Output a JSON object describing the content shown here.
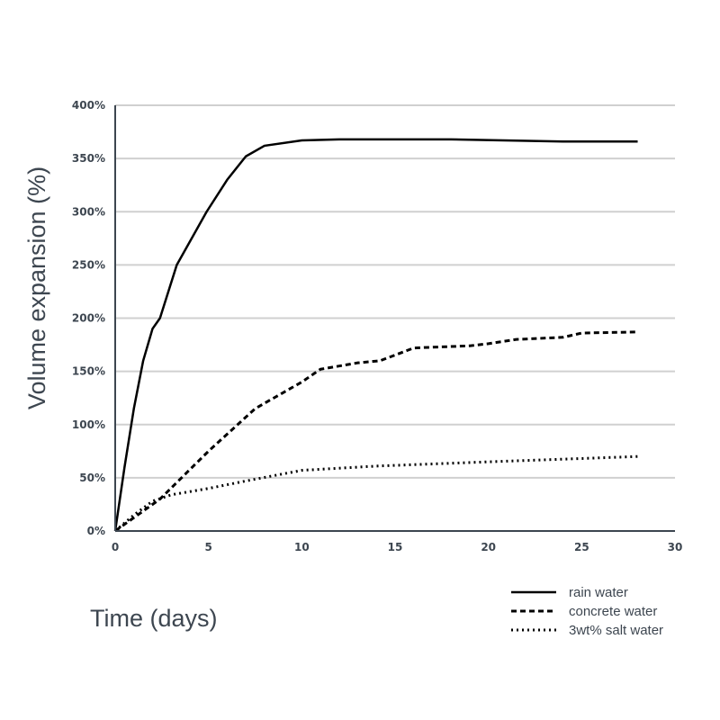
{
  "chart_data": {
    "type": "line",
    "title": "",
    "xlabel": "Time (days)",
    "ylabel": "Volume expansion (%)",
    "xlim": [
      0,
      30
    ],
    "ylim": [
      0,
      400
    ],
    "xticks": [
      0,
      5,
      10,
      15,
      20,
      25,
      30
    ],
    "yticks": [
      "0%",
      "50%",
      "100%",
      "150%",
      "200%",
      "250%",
      "300%",
      "350%",
      "400%"
    ],
    "grid": "horizontal",
    "legend_position": "bottom-right",
    "series": [
      {
        "name": "rain water",
        "style": "solid",
        "color": "#000000",
        "x": [
          0,
          0.5,
          1,
          1.5,
          2,
          2.4,
          3.3,
          4.9,
          6,
          7,
          8,
          10,
          12,
          18,
          24,
          28
        ],
        "y": [
          0,
          60,
          115,
          160,
          190,
          200,
          250,
          300,
          330,
          352,
          362,
          367,
          368,
          368,
          366,
          366
        ]
      },
      {
        "name": "concrete water",
        "style": "dashed",
        "color": "#000000",
        "x": [
          0,
          2.4,
          5,
          7.5,
          9,
          10,
          11,
          13,
          14.2,
          16,
          19,
          20,
          21.5,
          24,
          25,
          28
        ],
        "y": [
          0,
          30,
          75,
          115,
          130,
          140,
          152,
          158,
          160,
          172,
          174,
          176,
          180,
          182,
          186,
          187
        ]
      },
      {
        "name": "3wt% salt water",
        "style": "dotted",
        "color": "#000000",
        "x": [
          0,
          1,
          2,
          3,
          5,
          7,
          10,
          14,
          20,
          28
        ],
        "y": [
          0,
          15,
          28,
          34,
          40,
          47,
          57,
          61,
          65,
          70
        ]
      }
    ]
  }
}
